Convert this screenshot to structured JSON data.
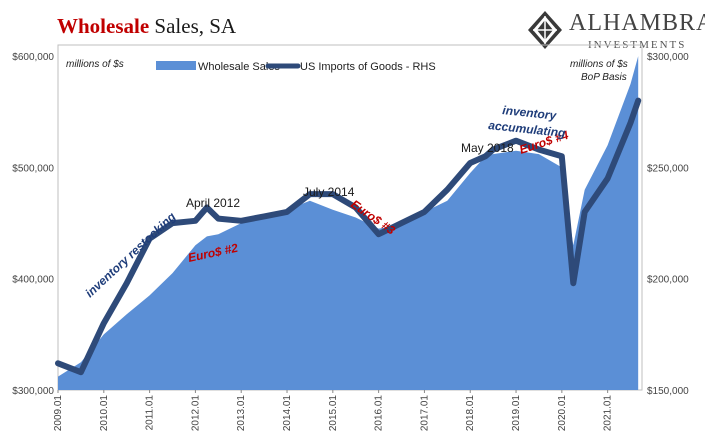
{
  "header": {
    "title_lead": "Wholesale",
    "title_rest": "Sales, SA",
    "logo_name": "ALHAMBRA",
    "logo_sub": "INVESTMENTS"
  },
  "colors": {
    "area": "#5b8fd6",
    "line": "#2e4a79",
    "red_note": "#c00000",
    "blue_note": "#1f3d7a"
  },
  "chart_data": {
    "type": "area",
    "left_unit_note": "millions of $s",
    "right_unit_note": [
      "millions of $s",
      "BoP Basis"
    ],
    "x": [
      "2009.01",
      "2009.07",
      "2010.01",
      "2010.07",
      "2011.01",
      "2011.07",
      "2012.01",
      "2012.04",
      "2012.07",
      "2013.01",
      "2013.07",
      "2014.01",
      "2014.07",
      "2015.01",
      "2015.07",
      "2016.01",
      "2016.07",
      "2017.01",
      "2017.07",
      "2018.01",
      "2018.05",
      "2018.07",
      "2019.01",
      "2019.07",
      "2020.01",
      "2020.04",
      "2020.07",
      "2021.01",
      "2021.07",
      "2021.09"
    ],
    "x_tick_labels": [
      "2009.01",
      "2010.01",
      "2011.01",
      "2012.01",
      "2013.01",
      "2014.01",
      "2015.01",
      "2016.01",
      "2017.01",
      "2018.01",
      "2019.01",
      "2020.01",
      "2021.01"
    ],
    "left_axis": {
      "ticks": [
        "$300,000",
        "$400,000",
        "$500,000",
        "$600,000"
      ],
      "tick_values": [
        300000,
        400000,
        500000,
        600000
      ],
      "ylim": [
        300000,
        610000
      ]
    },
    "right_axis": {
      "ticks": [
        "$150,000",
        "$200,000",
        "$250,000",
        "$300,000"
      ],
      "tick_values": [
        150000,
        200000,
        250000,
        300000
      ],
      "ylim": [
        150000,
        305000
      ]
    },
    "series": [
      {
        "name": "Wholesale Sales",
        "axis": "left",
        "style": "area",
        "values": [
          312000,
          325000,
          350000,
          368000,
          385000,
          405000,
          430000,
          438000,
          440000,
          450000,
          455000,
          462000,
          470000,
          462000,
          455000,
          445000,
          448000,
          460000,
          470000,
          495000,
          510000,
          512000,
          515000,
          512000,
          500000,
          430000,
          480000,
          520000,
          575000,
          600000
        ]
      },
      {
        "name": "US Imports of Goods - RHS",
        "axis": "right",
        "style": "line",
        "values": [
          162000,
          158000,
          180000,
          198000,
          218000,
          225000,
          226000,
          232000,
          227000,
          226000,
          228000,
          230000,
          238000,
          238000,
          232000,
          220000,
          225000,
          230000,
          240000,
          252000,
          255000,
          258000,
          262000,
          258000,
          255000,
          198000,
          230000,
          245000,
          270000,
          280000
        ]
      }
    ],
    "annotations": {
      "inventory_restocking": "inventory restocking",
      "april_2012": "April 2012",
      "euro2": "Euro$ #2",
      "july_2014": "July 2014",
      "euro3": "Euro$ #3",
      "may_2018": "May 2018",
      "euro4": "Euro$ #4",
      "inventory_accumulating_1": "inventory",
      "inventory_accumulating_2": "accumulating"
    },
    "legend_placement": "top"
  }
}
